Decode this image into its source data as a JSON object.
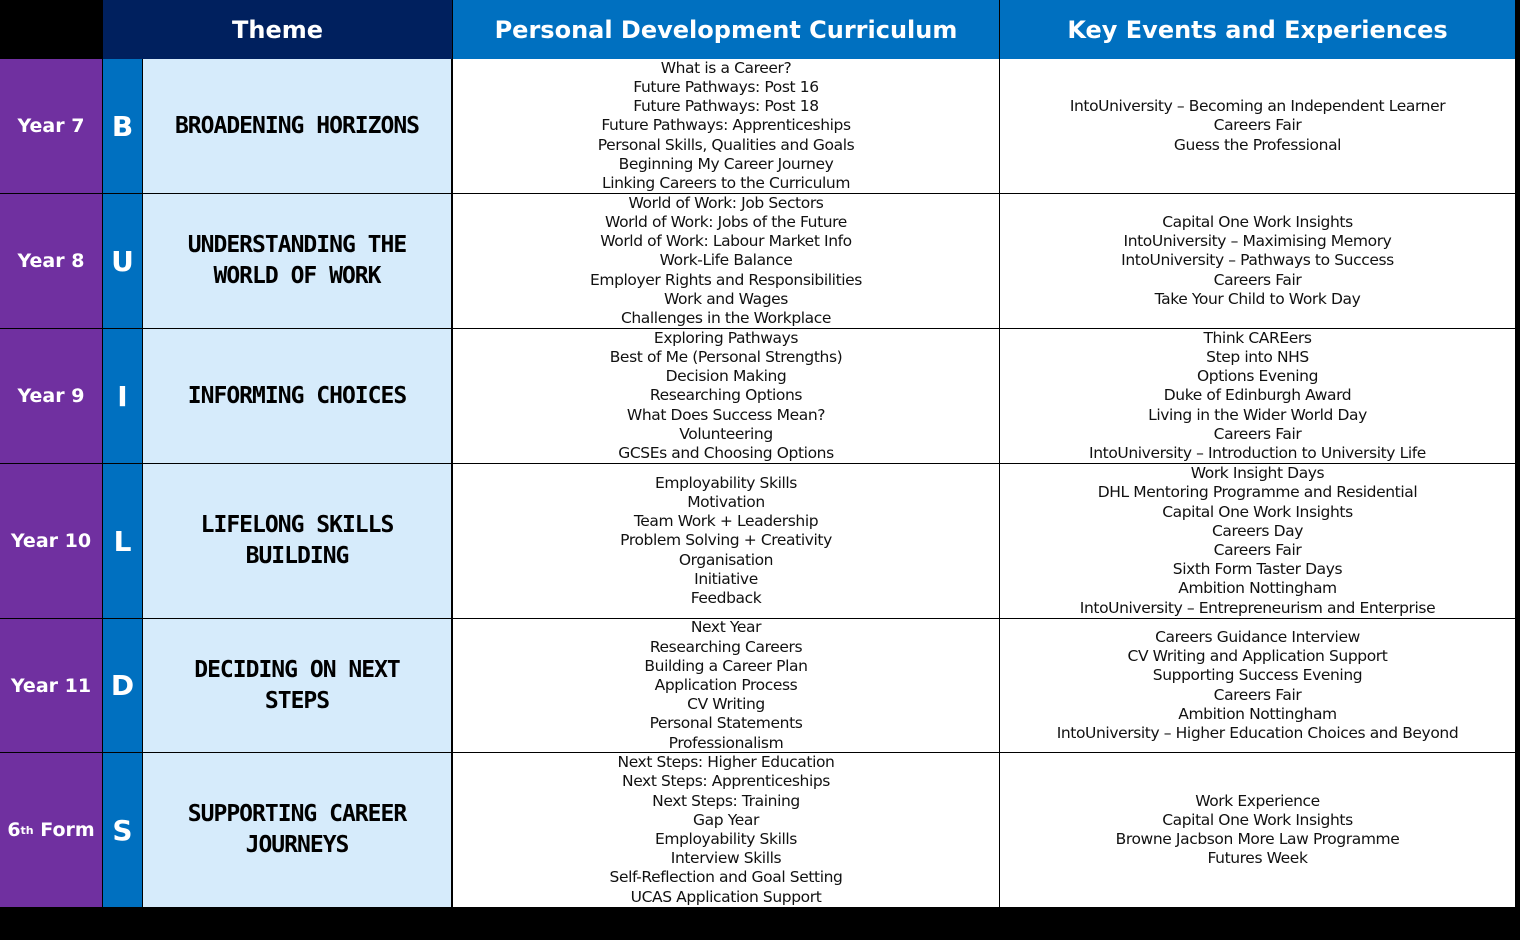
{
  "header": {
    "theme": "Theme",
    "curriculum": "Personal Development Curriculum",
    "events": "Key Events and Experiences"
  },
  "colors": {
    "header_theme_bg": "#00205e",
    "header_blue": "#0070c0",
    "year_bg": "#7030a0",
    "theme_bg": "#d6ebfb"
  },
  "rows": [
    {
      "year": "Year 7",
      "letter": "B",
      "theme": "BROADENING HORIZONS",
      "curriculum": [
        "What is a Career?",
        "Future Pathways: Post 16",
        "Future Pathways: Post 18",
        "Future Pathways: Apprenticeships",
        "Personal Skills, Qualities and Goals",
        "Beginning My Career Journey",
        "Linking Careers to the Curriculum"
      ],
      "events": [
        "IntoUniversity – Becoming an Independent Learner",
        "Careers Fair",
        "Guess the Professional"
      ]
    },
    {
      "year": "Year 8",
      "letter": "U",
      "theme": "UNDERSTANDING THE WORLD OF WORK",
      "curriculum": [
        "World of Work: Job Sectors",
        "World of Work: Jobs of the Future",
        "World of Work: Labour Market Info",
        "Work-Life Balance",
        "Employer Rights and Responsibilities",
        "Work and Wages",
        "Challenges in the Workplace"
      ],
      "events": [
        "Capital One Work Insights",
        "IntoUniversity – Maximising Memory",
        "IntoUniversity – Pathways to Success",
        "Careers Fair",
        "Take Your Child to Work Day"
      ]
    },
    {
      "year": "Year 9",
      "letter": "I",
      "theme": "INFORMING CHOICES",
      "curriculum": [
        "Exploring Pathways",
        "Best of Me (Personal Strengths)",
        "Decision Making",
        "Researching Options",
        "What Does Success Mean?",
        "Volunteering",
        "GCSEs and Choosing Options"
      ],
      "events": [
        "Think CAREers",
        "Step into NHS",
        "Options Evening",
        "Duke of Edinburgh Award",
        "Living in the Wider World Day",
        "Careers Fair",
        "IntoUniversity – Introduction to University Life"
      ]
    },
    {
      "year": "Year 10",
      "letter": "L",
      "theme": "LIFELONG SKILLS BUILDING",
      "curriculum": [
        "Employability Skills",
        "Motivation",
        "Team Work + Leadership",
        "Problem Solving + Creativity",
        "Organisation",
        "Initiative",
        "Feedback"
      ],
      "events": [
        "Work Insight Days",
        "DHL Mentoring Programme and Residential",
        "Capital One Work Insights",
        "Careers Day",
        "Careers Fair",
        "Sixth Form Taster Days",
        "Ambition Nottingham",
        "IntoUniversity – Entrepreneurism and Enterprise"
      ]
    },
    {
      "year": "Year 11",
      "letter": "D",
      "theme": "DECIDING ON NEXT STEPS",
      "curriculum": [
        "Next Year",
        "Researching Careers",
        "Building a Career Plan",
        "Application Process",
        "CV Writing",
        "Personal Statements",
        "Professionalism"
      ],
      "events": [
        "Careers Guidance Interview",
        "CV Writing and Application Support",
        "Supporting Success Evening",
        "Careers Fair",
        "Ambition Nottingham",
        "IntoUniversity – Higher Education Choices and Beyond"
      ]
    },
    {
      "year": "6",
      "year_sup": "th",
      "year_suffix": " Form",
      "letter": "S",
      "theme": "SUPPORTING CAREER JOURNEYS",
      "curriculum": [
        "Next Steps: Higher Education",
        "Next Steps: Apprenticeships",
        "Next Steps: Training",
        "Gap Year",
        "Employability Skills",
        "Interview Skills",
        "Self-Reflection and Goal Setting",
        "UCAS Application Support"
      ],
      "events": [
        "Work Experience",
        "Capital One Work Insights",
        "Browne Jacbson More Law Programme",
        "Futures Week"
      ]
    }
  ]
}
